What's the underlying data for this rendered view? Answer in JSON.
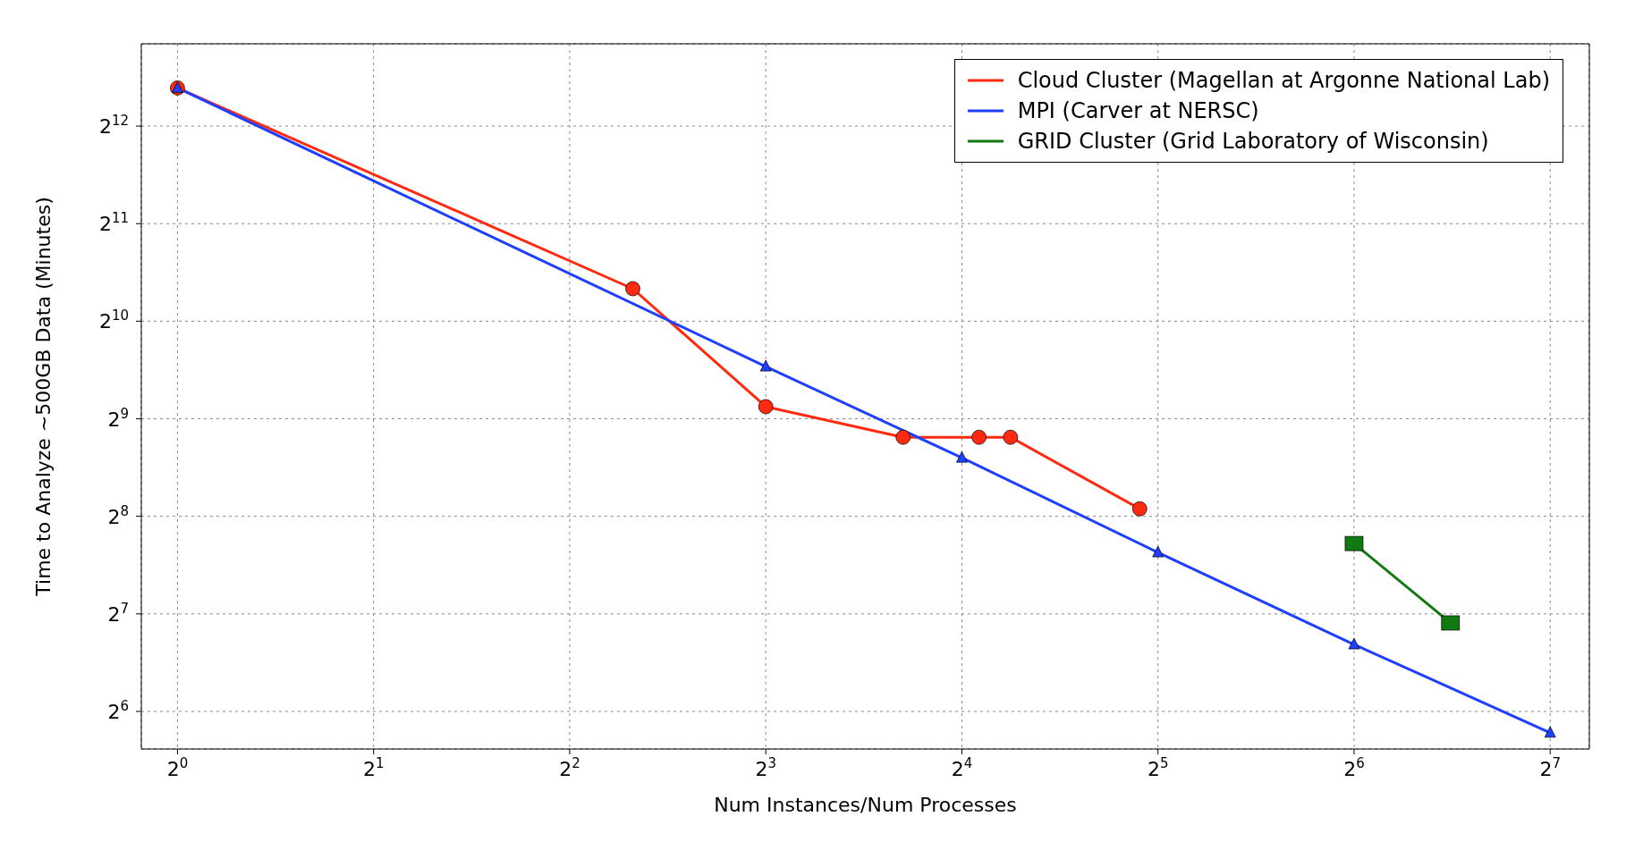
{
  "chart_data": {
    "type": "line",
    "xlabel": "Num Instances/Num Processes",
    "ylabel": "Time to Analyze ~500GB Data (Minutes)",
    "log": "xy",
    "grid": true,
    "legend": "top right",
    "line_style": "solid",
    "xlim": [
      0.88,
      147
    ],
    "ylim": [
      49,
      7350
    ],
    "xticks": [
      {
        "value": 1,
        "label": "2$^{0}$"
      },
      {
        "value": 2,
        "label": "2$^{1}$"
      },
      {
        "value": 4,
        "label": "2$^{2}$"
      },
      {
        "value": 8,
        "label": "2$^{3}$"
      },
      {
        "value": 16,
        "label": "2$^{4}$"
      },
      {
        "value": 32,
        "label": "2$^{5}$"
      },
      {
        "value": 64,
        "label": "2$^{6}$"
      },
      {
        "value": 128,
        "label": "2$^{7}$"
      }
    ],
    "yticks": [
      {
        "value": 64,
        "label": "2$^{6}$"
      },
      {
        "value": 128,
        "label": "2$^{7}$"
      },
      {
        "value": 256,
        "label": "2$^{8}$"
      },
      {
        "value": 512,
        "label": "2$^{9}$"
      },
      {
        "value": 1024,
        "label": "2$^{10}$"
      },
      {
        "value": 2048,
        "label": "2$^{11}$"
      },
      {
        "value": 4096,
        "label": "2$^{12}$"
      }
    ],
    "series": [
      {
        "name": "Cloud Cluster (Magellan at Argonne National Lab)",
        "color": "#ff2a0f",
        "marker": "circle",
        "x": [
          1,
          5,
          8,
          13,
          17,
          19,
          30
        ],
        "values": [
          5370,
          1290,
          558,
          449,
          449,
          449,
          270
        ]
      },
      {
        "name": "MPI (Carver at NERSC)",
        "color": "#1f3fff",
        "marker": "triangle",
        "x": [
          1,
          8,
          16,
          32,
          64,
          128
        ],
        "values": [
          5370,
          742,
          388,
          198,
          103,
          55
        ]
      },
      {
        "name": "GRID Cluster (Grid Laboratory of Wisconsin)",
        "color": "#107a10",
        "marker": "square",
        "x": [
          64,
          90
        ],
        "values": [
          211,
          120
        ]
      }
    ]
  }
}
